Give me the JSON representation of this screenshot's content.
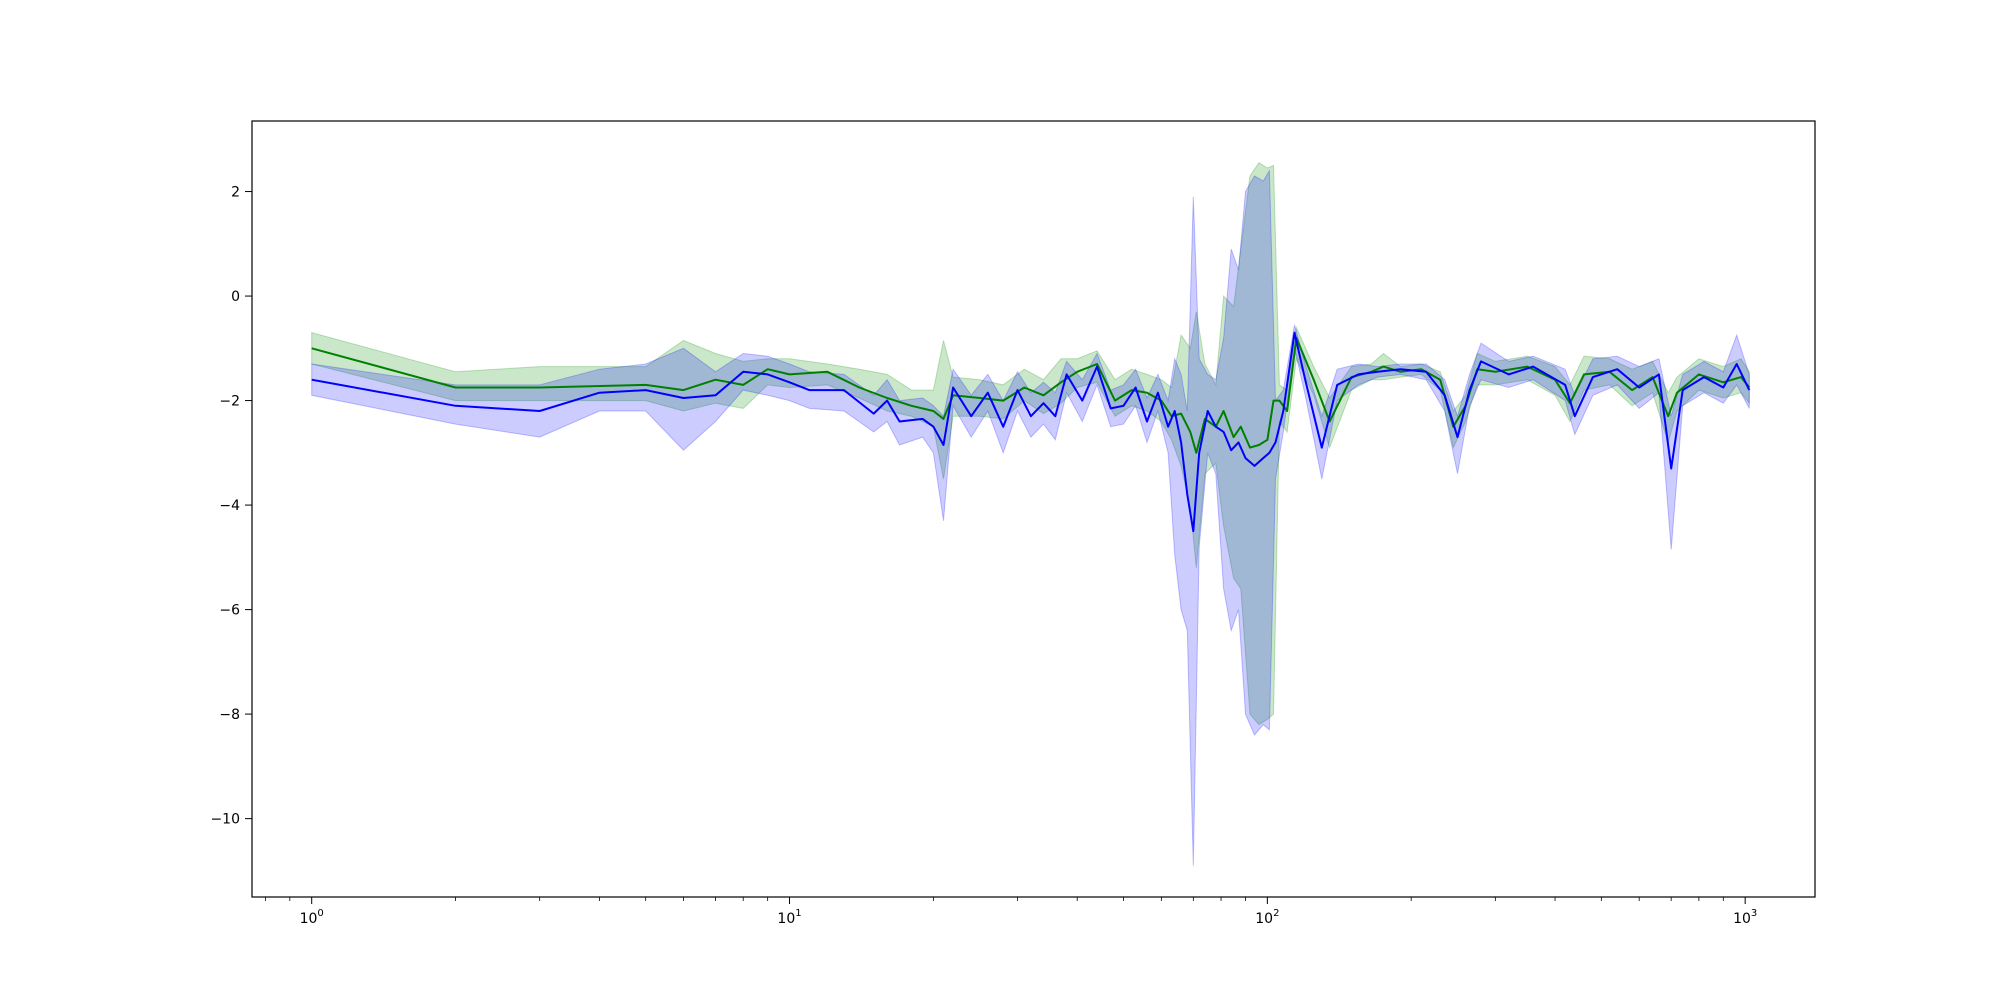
{
  "chart_data": {
    "type": "line",
    "title": "",
    "xlabel": "",
    "ylabel": "",
    "xscale": "log",
    "xlim": [
      0.75,
      1400
    ],
    "ylim": [
      -11.5,
      3.35
    ],
    "grid": false,
    "legend": "none",
    "x_ticks": [
      {
        "value": 1,
        "base": "10",
        "exp": "0"
      },
      {
        "value": 10,
        "base": "10",
        "exp": "1"
      },
      {
        "value": 100,
        "base": "10",
        "exp": "2"
      },
      {
        "value": 1000,
        "base": "10",
        "exp": "3"
      }
    ],
    "y_ticks": [
      {
        "value": 2,
        "label": "2"
      },
      {
        "value": 0,
        "label": "0"
      },
      {
        "value": -2,
        "label": "−2"
      },
      {
        "value": -4,
        "label": "−4"
      },
      {
        "value": -6,
        "label": "−6"
      },
      {
        "value": -8,
        "label": "−8"
      },
      {
        "value": -10,
        "label": "−10"
      }
    ],
    "series": [
      {
        "color": "#008000",
        "band_color": "#2ca02c",
        "band_opacity": 0.25,
        "points": [
          [
            1,
            -1.0,
            -0.7,
            -1.3
          ],
          [
            2,
            -1.75,
            -1.45,
            -2.0
          ],
          [
            3,
            -1.75,
            -1.35,
            -2.0
          ],
          [
            5,
            -1.7,
            -1.35,
            -2.0
          ],
          [
            6,
            -1.8,
            -0.85,
            -2.2
          ],
          [
            7,
            -1.6,
            -1.1,
            -2.05
          ],
          [
            8,
            -1.7,
            -1.25,
            -2.15
          ],
          [
            9,
            -1.4,
            -1.2,
            -1.7
          ],
          [
            10,
            -1.5,
            -1.2,
            -1.75
          ],
          [
            12,
            -1.45,
            -1.3,
            -1.7
          ],
          [
            14,
            -1.75,
            -1.4,
            -1.95
          ],
          [
            16,
            -1.95,
            -1.5,
            -2.2
          ],
          [
            18,
            -2.1,
            -1.8,
            -2.3
          ],
          [
            20,
            -2.2,
            -1.8,
            -2.5
          ],
          [
            21,
            -2.35,
            -0.85,
            -3.5
          ],
          [
            22,
            -1.9,
            -1.55,
            -2.3
          ],
          [
            25,
            -1.95,
            -1.6,
            -2.3
          ],
          [
            28,
            -2.0,
            -1.7,
            -2.35
          ],
          [
            31,
            -1.75,
            -1.4,
            -2.0
          ],
          [
            34,
            -1.9,
            -1.6,
            -2.25
          ],
          [
            37,
            -1.65,
            -1.2,
            -2.05
          ],
          [
            40,
            -1.45,
            -1.2,
            -1.75
          ],
          [
            44,
            -1.3,
            -1.05,
            -1.65
          ],
          [
            48,
            -2.0,
            -1.6,
            -2.3
          ],
          [
            52,
            -1.8,
            -1.4,
            -2.1
          ],
          [
            56,
            -1.85,
            -1.5,
            -2.2
          ],
          [
            60,
            -2.0,
            -1.6,
            -2.4
          ],
          [
            63,
            -2.3,
            -1.75,
            -2.75
          ],
          [
            66,
            -2.25,
            -0.75,
            -3.25
          ],
          [
            69,
            -2.6,
            -1.0,
            -4.05
          ],
          [
            71,
            -3.0,
            -0.3,
            -5.2
          ],
          [
            74,
            -2.35,
            -1.3,
            -3.4
          ],
          [
            78,
            -2.5,
            -1.7,
            -3.2
          ],
          [
            81,
            -2.2,
            0.0,
            -4.4
          ],
          [
            85,
            -2.7,
            -0.2,
            -5.4
          ],
          [
            88,
            -2.5,
            0.9,
            -5.6
          ],
          [
            92,
            -2.9,
            2.3,
            -8.0
          ],
          [
            96,
            -2.85,
            2.55,
            -8.2
          ],
          [
            100,
            -2.75,
            2.45,
            -8.1
          ],
          [
            103,
            -2.0,
            2.5,
            -8.0
          ],
          [
            106,
            -2.0,
            -1.7,
            -2.4
          ],
          [
            110,
            -2.2,
            -1.8,
            -2.6
          ],
          [
            115,
            -0.8,
            -0.6,
            -1.2
          ],
          [
            125,
            -1.6,
            -1.35,
            -1.9
          ],
          [
            135,
            -2.4,
            -1.95,
            -2.9
          ],
          [
            150,
            -1.55,
            -1.35,
            -1.8
          ],
          [
            165,
            -1.45,
            -1.3,
            -1.6
          ],
          [
            175,
            -1.35,
            -1.1,
            -1.6
          ],
          [
            190,
            -1.45,
            -1.35,
            -1.55
          ],
          [
            210,
            -1.4,
            -1.3,
            -1.5
          ],
          [
            230,
            -1.6,
            -1.45,
            -1.8
          ],
          [
            245,
            -2.5,
            -2.2,
            -2.9
          ],
          [
            260,
            -2.1,
            -1.9,
            -2.4
          ],
          [
            275,
            -1.4,
            -1.1,
            -1.7
          ],
          [
            300,
            -1.45,
            -1.25,
            -1.7
          ],
          [
            350,
            -1.35,
            -1.15,
            -1.6
          ],
          [
            400,
            -1.6,
            -1.35,
            -1.9
          ],
          [
            430,
            -2.05,
            -1.7,
            -2.4
          ],
          [
            460,
            -1.5,
            -1.15,
            -1.8
          ],
          [
            520,
            -1.45,
            -1.2,
            -1.7
          ],
          [
            580,
            -1.8,
            -1.4,
            -2.1
          ],
          [
            640,
            -1.55,
            -1.25,
            -1.85
          ],
          [
            690,
            -2.3,
            -1.85,
            -2.8
          ],
          [
            720,
            -1.85,
            -1.55,
            -2.2
          ],
          [
            800,
            -1.5,
            -1.2,
            -1.8
          ],
          [
            900,
            -1.65,
            -1.35,
            -1.95
          ],
          [
            980,
            -1.55,
            -1.2,
            -1.85
          ],
          [
            1020,
            -1.75,
            -1.45,
            -2.05
          ]
        ]
      },
      {
        "color": "#0000ff",
        "band_color": "#0000ff",
        "band_opacity": 0.2,
        "points": [
          [
            1,
            -1.6,
            -1.3,
            -1.9
          ],
          [
            2,
            -2.1,
            -1.7,
            -2.45
          ],
          [
            3,
            -2.2,
            -1.7,
            -2.7
          ],
          [
            4,
            -1.85,
            -1.4,
            -2.2
          ],
          [
            5,
            -1.8,
            -1.3,
            -2.2
          ],
          [
            6,
            -1.95,
            -1.0,
            -2.95
          ],
          [
            7,
            -1.9,
            -1.45,
            -2.4
          ],
          [
            8,
            -1.45,
            -1.1,
            -1.8
          ],
          [
            9,
            -1.5,
            -1.15,
            -1.9
          ],
          [
            10,
            -1.65,
            -1.3,
            -2.0
          ],
          [
            11,
            -1.8,
            -1.45,
            -2.15
          ],
          [
            13,
            -1.8,
            -1.5,
            -2.2
          ],
          [
            15,
            -2.25,
            -1.9,
            -2.6
          ],
          [
            16,
            -2.0,
            -1.6,
            -2.4
          ],
          [
            17,
            -2.4,
            -2.0,
            -2.85
          ],
          [
            19,
            -2.35,
            -1.95,
            -2.7
          ],
          [
            20,
            -2.5,
            -2.1,
            -3.0
          ],
          [
            21,
            -2.85,
            -2.3,
            -4.3
          ],
          [
            22,
            -1.75,
            -1.4,
            -2.1
          ],
          [
            24,
            -2.3,
            -1.9,
            -2.7
          ],
          [
            26,
            -1.85,
            -1.5,
            -2.2
          ],
          [
            28,
            -2.5,
            -2.0,
            -3.0
          ],
          [
            30,
            -1.8,
            -1.45,
            -2.2
          ],
          [
            32,
            -2.3,
            -1.85,
            -2.7
          ],
          [
            34,
            -2.05,
            -1.65,
            -2.45
          ],
          [
            36,
            -2.3,
            -1.85,
            -2.75
          ],
          [
            38,
            -1.5,
            -1.25,
            -1.85
          ],
          [
            41,
            -2.0,
            -1.6,
            -2.4
          ],
          [
            44,
            -1.35,
            -1.1,
            -1.7
          ],
          [
            47,
            -2.15,
            -1.8,
            -2.5
          ],
          [
            50,
            -2.1,
            -1.7,
            -2.45
          ],
          [
            53,
            -1.75,
            -1.4,
            -2.1
          ],
          [
            56,
            -2.4,
            -1.95,
            -2.8
          ],
          [
            59,
            -1.85,
            -1.5,
            -2.2
          ],
          [
            62,
            -2.5,
            -2.0,
            -3.0
          ],
          [
            64,
            -2.2,
            -1.2,
            -4.95
          ],
          [
            66,
            -2.8,
            -1.5,
            -6.0
          ],
          [
            68,
            -3.8,
            -2.2,
            -6.4
          ],
          [
            70,
            -4.5,
            1.9,
            -10.9
          ],
          [
            72,
            -3.0,
            -1.2,
            -4.8
          ],
          [
            75,
            -2.2,
            -1.5,
            -3.0
          ],
          [
            78,
            -2.5,
            -1.6,
            -3.4
          ],
          [
            81,
            -2.6,
            -0.8,
            -5.6
          ],
          [
            84,
            -2.95,
            0.9,
            -6.4
          ],
          [
            87,
            -2.8,
            0.5,
            -6.0
          ],
          [
            90,
            -3.1,
            2.0,
            -8.0
          ],
          [
            94,
            -3.25,
            2.3,
            -8.4
          ],
          [
            98,
            -3.1,
            2.2,
            -8.2
          ],
          [
            101,
            -3.0,
            2.4,
            -8.3
          ],
          [
            104,
            -2.8,
            -2.0,
            -3.5
          ],
          [
            108,
            -2.2,
            -1.8,
            -2.6
          ],
          [
            114,
            -0.7,
            -0.55,
            -1.0
          ],
          [
            120,
            -1.6,
            -1.3,
            -1.9
          ],
          [
            130,
            -2.9,
            -2.3,
            -3.5
          ],
          [
            140,
            -1.7,
            -1.4,
            -2.0
          ],
          [
            155,
            -1.5,
            -1.3,
            -1.7
          ],
          [
            170,
            -1.45,
            -1.35,
            -1.55
          ],
          [
            190,
            -1.4,
            -1.3,
            -1.5
          ],
          [
            215,
            -1.45,
            -1.3,
            -1.6
          ],
          [
            235,
            -1.9,
            -1.6,
            -2.2
          ],
          [
            250,
            -2.7,
            -2.3,
            -3.4
          ],
          [
            265,
            -1.8,
            -1.5,
            -2.1
          ],
          [
            280,
            -1.25,
            -0.9,
            -1.6
          ],
          [
            320,
            -1.5,
            -1.25,
            -1.75
          ],
          [
            360,
            -1.35,
            -1.15,
            -1.6
          ],
          [
            420,
            -1.7,
            -1.4,
            -2.0
          ],
          [
            440,
            -2.3,
            -1.9,
            -2.65
          ],
          [
            480,
            -1.55,
            -1.2,
            -1.9
          ],
          [
            540,
            -1.4,
            -1.15,
            -1.7
          ],
          [
            600,
            -1.75,
            -1.35,
            -2.15
          ],
          [
            660,
            -1.5,
            -1.2,
            -1.85
          ],
          [
            700,
            -3.3,
            -2.3,
            -4.85
          ],
          [
            740,
            -1.8,
            -1.5,
            -2.1
          ],
          [
            820,
            -1.55,
            -1.25,
            -1.85
          ],
          [
            900,
            -1.75,
            -1.45,
            -2.05
          ],
          [
            960,
            -1.3,
            -0.75,
            -1.7
          ],
          [
            1020,
            -1.8,
            -1.5,
            -2.15
          ]
        ]
      }
    ]
  }
}
